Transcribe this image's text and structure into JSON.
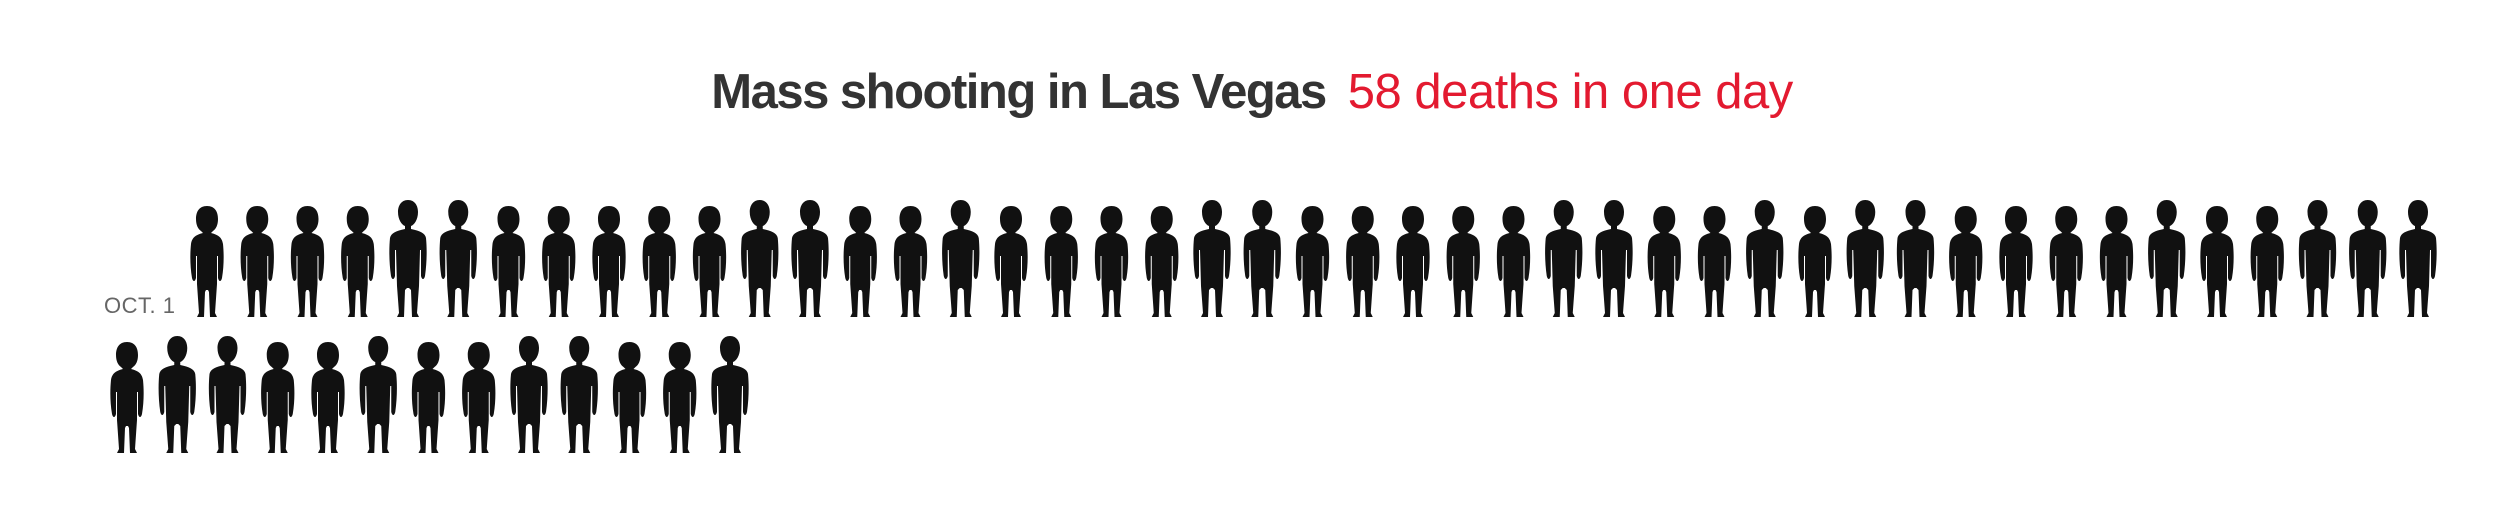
{
  "headline": {
    "title": "Mass shooting in Las Vegas",
    "subtitle": "58 deaths in one day"
  },
  "chart_data": {
    "type": "pictogram",
    "title": "Mass shooting in Las Vegas",
    "subtitle": "58 deaths in one day",
    "categories": [
      "OCT. 1"
    ],
    "values": [
      58
    ],
    "unit_icon": "person-silhouette-icon",
    "icon_pattern": [
      "female",
      "female",
      "female",
      "female",
      "male",
      "male",
      "female",
      "female",
      "female",
      "female",
      "female",
      "male",
      "male",
      "female",
      "female",
      "male",
      "female",
      "female",
      "female",
      "female",
      "male",
      "male",
      "female",
      "female",
      "female",
      "female",
      "female",
      "male",
      "male",
      "female",
      "female",
      "male",
      "female",
      "male",
      "male",
      "female",
      "female",
      "female",
      "female",
      "male",
      "female",
      "female",
      "male",
      "male",
      "male",
      "female",
      "male",
      "male",
      "female",
      "female",
      "male",
      "female",
      "female",
      "male",
      "male",
      "female",
      "female",
      "male"
    ],
    "colors": {
      "figure": "#111111",
      "title": "#333333",
      "subtitle": "#e31a30",
      "label": "#666666"
    }
  }
}
